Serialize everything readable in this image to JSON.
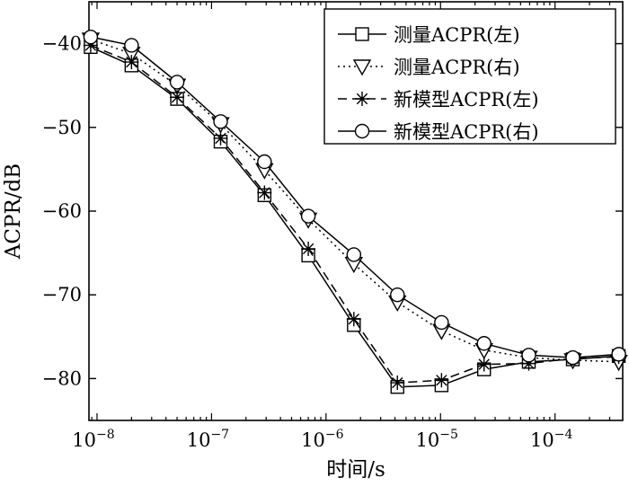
{
  "chart_data": {
    "type": "line",
    "xlabel": "时间/s",
    "ylabel": "ACPR/dB",
    "xscale": "log",
    "xlim": [
      8.5e-09,
      0.00039
    ],
    "ylim": [
      -85,
      -35
    ],
    "grid": false,
    "legend_position": "top-right",
    "x_ticks": [
      {
        "base": "10",
        "exp": "−8"
      },
      {
        "base": "10",
        "exp": "−7"
      },
      {
        "base": "10",
        "exp": "−6"
      },
      {
        "base": "10",
        "exp": "−5"
      },
      {
        "base": "10",
        "exp": "−4"
      }
    ],
    "x_tick_values": [
      1e-08,
      1e-07,
      1e-06,
      1e-05,
      0.0001
    ],
    "y_ticks": [
      "−40",
      "−50",
      "−60",
      "−70",
      "−80"
    ],
    "y_tick_values": [
      -40,
      -50,
      -60,
      -70,
      -80
    ],
    "series": [
      {
        "name": "测量ACPR(左)",
        "marker": "square",
        "line": "solid",
        "color": "#000000",
        "x": [
          8.8e-09,
          2e-08,
          5e-08,
          1.2e-07,
          2.9e-07,
          7e-07,
          1.75e-06,
          4.2e-06,
          1.02e-05,
          2.4e-05,
          5.9e-05,
          0.000143,
          0.00036
        ],
        "y": [
          -40.4,
          -42.6,
          -46.6,
          -51.7,
          -58.1,
          -65.3,
          -73.6,
          -81.0,
          -80.8,
          -78.9,
          -78.0,
          -77.7,
          -77.3
        ]
      },
      {
        "name": "测量ACPR(右)",
        "marker": "triangle-down",
        "line": "dotted",
        "color": "#000000",
        "x": [
          8.8e-09,
          2e-08,
          5e-08,
          1.2e-07,
          2.9e-07,
          7e-07,
          1.75e-06,
          4.2e-06,
          1.02e-05,
          2.4e-05,
          5.9e-05,
          0.000143,
          0.00036
        ],
        "y": [
          -39.5,
          -41.2,
          -45.0,
          -49.6,
          -55.1,
          -61.0,
          -66.3,
          -70.9,
          -74.3,
          -76.6,
          -77.5,
          -77.8,
          -78.0
        ]
      },
      {
        "name": "新模型ACPR(左)",
        "marker": "asterisk",
        "line": "dashed",
        "color": "#000000",
        "x": [
          8.8e-09,
          2e-08,
          5e-08,
          1.2e-07,
          2.9e-07,
          7e-07,
          1.75e-06,
          4.2e-06,
          1.02e-05,
          2.4e-05,
          5.9e-05,
          0.000143,
          0.00036
        ],
        "y": [
          -40.2,
          -42.2,
          -46.4,
          -51.3,
          -57.8,
          -64.5,
          -72.9,
          -80.5,
          -80.2,
          -78.3,
          -78.2,
          -77.6,
          -77.4
        ]
      },
      {
        "name": "新模型ACPR(右)",
        "marker": "circle",
        "line": "solid",
        "color": "#000000",
        "x": [
          8.8e-09,
          2e-08,
          5e-08,
          1.2e-07,
          2.9e-07,
          7e-07,
          1.75e-06,
          4.2e-06,
          1.02e-05,
          2.4e-05,
          5.9e-05,
          0.000143,
          0.00036
        ],
        "y": [
          -39.2,
          -40.2,
          -44.6,
          -49.3,
          -54.1,
          -60.6,
          -65.2,
          -70.0,
          -73.3,
          -75.8,
          -77.2,
          -77.5,
          -77.1
        ]
      }
    ]
  }
}
